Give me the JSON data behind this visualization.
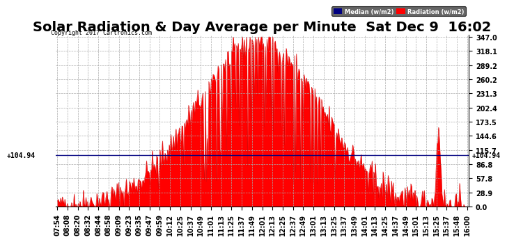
{
  "title": "Solar Radiation & Day Average per Minute  Sat Dec 9  16:02",
  "copyright": "Copyright 2017 Cartronics.com",
  "legend_median_label": "Median (w/m2)",
  "legend_radiation_label": "Radiation (w/m2)",
  "legend_median_color": "#000080",
  "legend_radiation_color": "#ff0000",
  "median_value": 104.94,
  "y_ticks": [
    0.0,
    28.9,
    57.8,
    86.8,
    115.7,
    144.6,
    173.5,
    202.4,
    231.3,
    260.2,
    289.2,
    318.1,
    347.0
  ],
  "x_tick_labels": [
    "07:54",
    "08:08",
    "08:20",
    "08:32",
    "08:44",
    "08:58",
    "09:09",
    "09:23",
    "09:35",
    "09:47",
    "09:59",
    "10:12",
    "10:25",
    "10:37",
    "10:49",
    "11:01",
    "11:13",
    "11:25",
    "11:37",
    "11:49",
    "12:01",
    "12:13",
    "12:25",
    "12:37",
    "12:49",
    "13:01",
    "13:13",
    "13:25",
    "13:37",
    "13:49",
    "14:01",
    "14:13",
    "14:25",
    "14:37",
    "14:49",
    "15:01",
    "15:13",
    "15:25",
    "15:37",
    "15:48",
    "16:00"
  ],
  "background_color": "#ffffff",
  "plot_bg_color": "#ffffff",
  "grid_color": "#aaaaaa",
  "grid_style": "--",
  "bar_color": "#ff0000",
  "bar_edge_color": "#cc0000",
  "title_fontsize": 14,
  "annotation_fontsize": 7,
  "tick_fontsize": 7,
  "ymax": 347.0,
  "ymin": 0.0
}
